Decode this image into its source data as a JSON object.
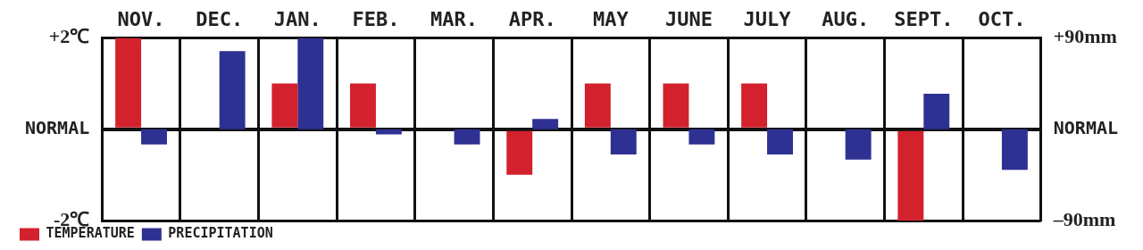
{
  "chart_data": {
    "type": "bar",
    "categories": [
      "NOV.",
      "DEC.",
      "JAN.",
      "FEB.",
      "MAR.",
      "APR.",
      "MAY",
      "JUNE",
      "JULY",
      "AUG.",
      "SEPT.",
      "OCT."
    ],
    "series": [
      {
        "name": "TEMPERATURE",
        "color": "#d3212d",
        "values": [
          2,
          0,
          1,
          1,
          0,
          -1,
          1,
          1,
          1,
          0,
          -2,
          0
        ]
      },
      {
        "name": "PRECIPITATION",
        "color": "#2e3192",
        "axis": "y2",
        "values": [
          -15,
          77,
          90,
          -5,
          -15,
          10,
          -25,
          -15,
          -25,
          -30,
          35,
          -40
        ]
      }
    ],
    "ylim": [
      -2,
      2
    ],
    "yticks": [
      {
        "value": -2,
        "label": "-2℃"
      },
      {
        "value": 0,
        "label": "NORMAL"
      },
      {
        "value": 2,
        "label": "+2℃"
      }
    ],
    "y2lim": [
      -90,
      90
    ],
    "y2ticks": [
      {
        "value": -90,
        "label": "–90mm"
      },
      {
        "value": 0,
        "label": "NORMAL"
      },
      {
        "value": 90,
        "label": "+90mm"
      }
    ],
    "grid": true,
    "legend": "lower left"
  }
}
